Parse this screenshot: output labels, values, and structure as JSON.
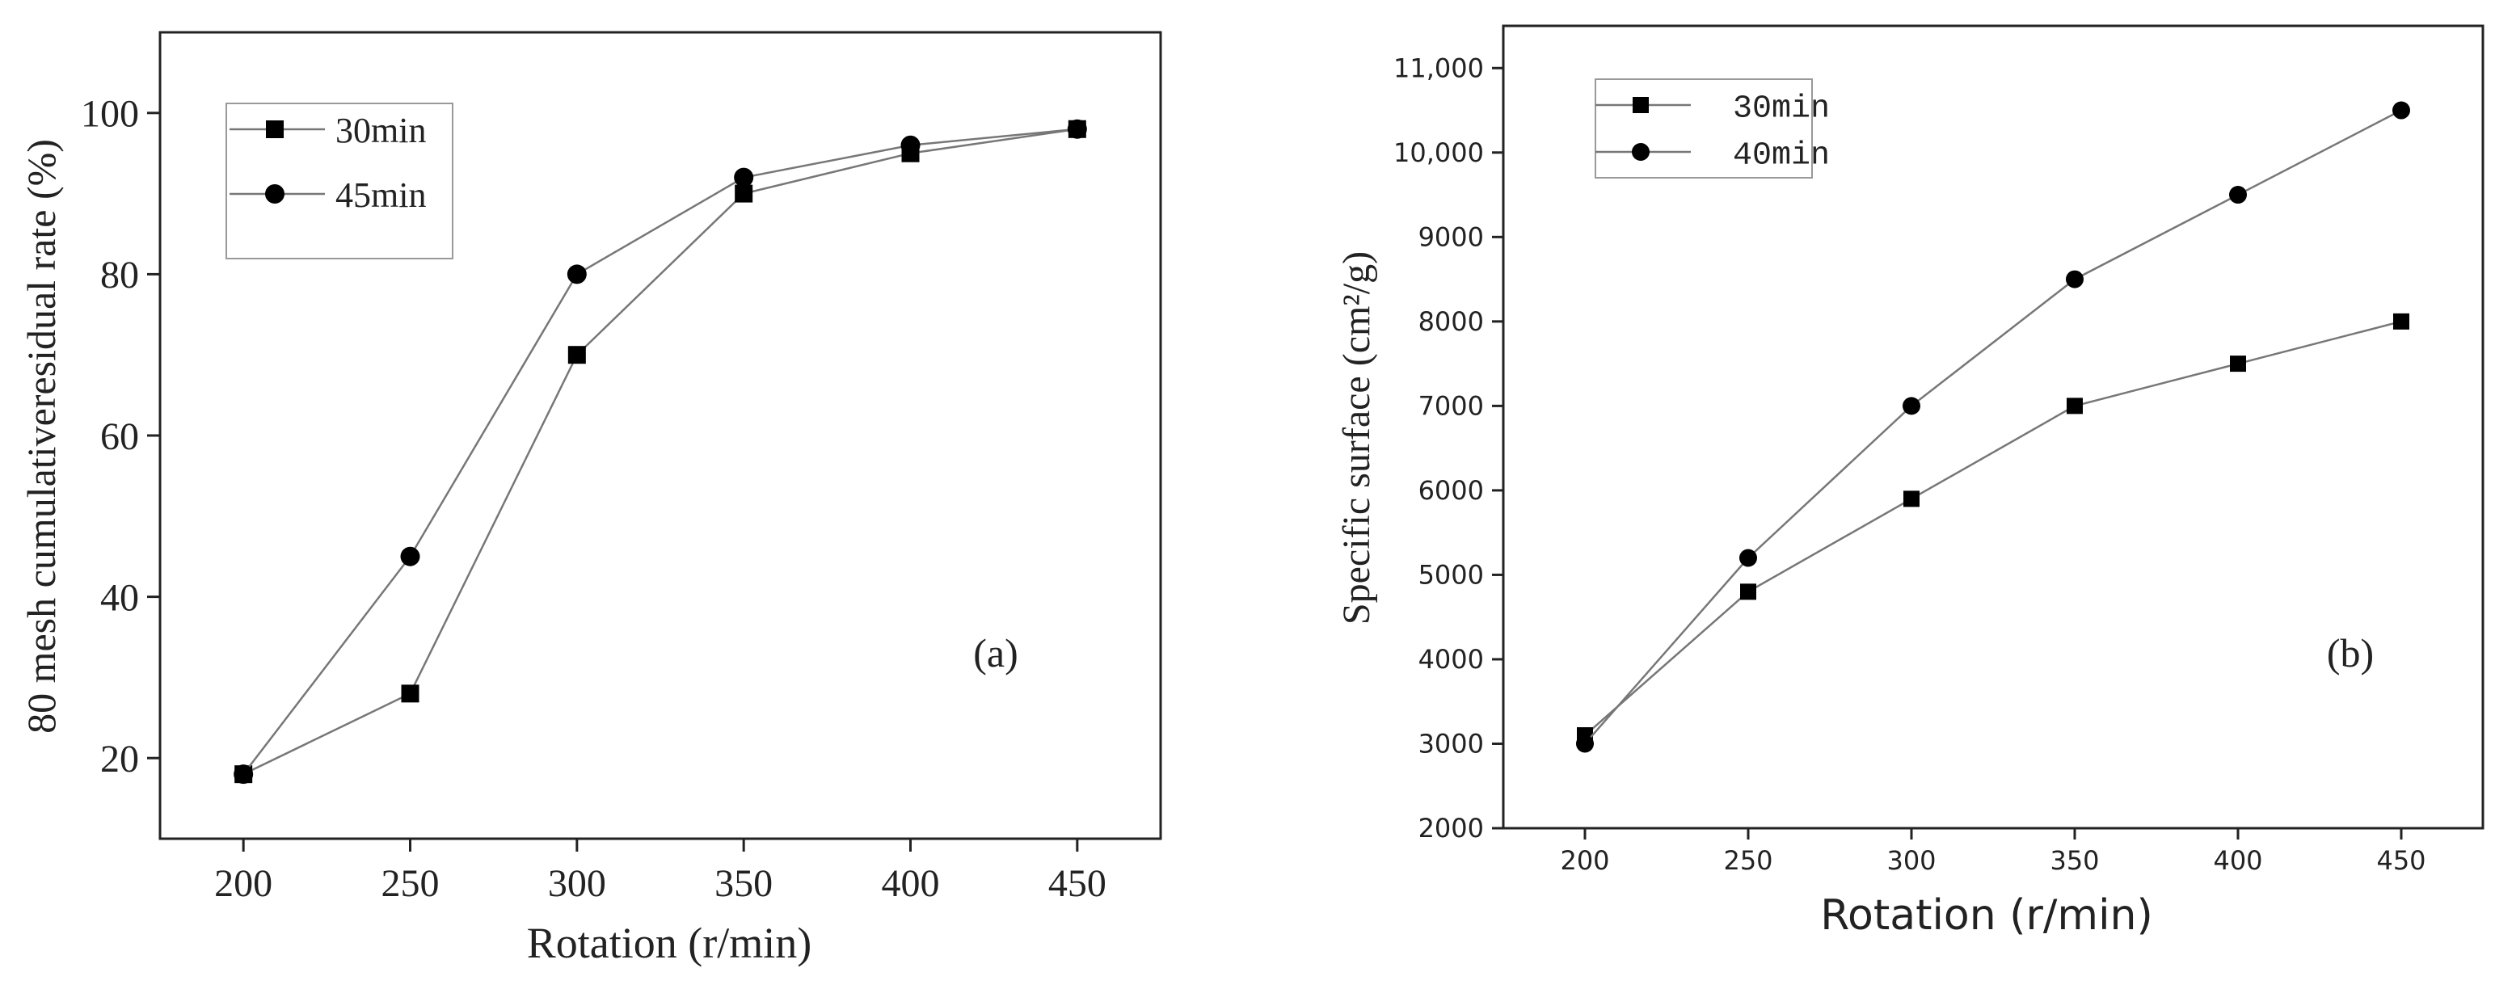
{
  "chart_data": [
    {
      "type": "line",
      "panel_label": "(a)",
      "title": "",
      "xlabel": "Rotation (r/min)",
      "ylabel": "80 mesh cumulativeresidual rate (%)",
      "x": [
        200,
        250,
        300,
        350,
        400,
        450
      ],
      "xlim": [
        175,
        475
      ],
      "ylim": [
        10,
        110
      ],
      "x_ticks": [
        "200",
        "250",
        "300",
        "350",
        "400",
        "450"
      ],
      "y_ticks": [
        "20",
        "40",
        "60",
        "80",
        "100"
      ],
      "grid": false,
      "legend_position": "top-left",
      "series": [
        {
          "name": "30min",
          "marker": "square",
          "values": [
            18,
            28,
            70,
            90,
            95,
            98
          ]
        },
        {
          "name": "45min",
          "marker": "circle",
          "values": [
            18,
            45,
            80,
            92,
            96,
            98
          ]
        }
      ]
    },
    {
      "type": "line",
      "panel_label": "(b)",
      "title": "",
      "xlabel": "Rotation (r/min)",
      "ylabel": "Specific surface (cm²/g)",
      "x": [
        200,
        250,
        300,
        350,
        400,
        450
      ],
      "xlim": [
        175,
        475
      ],
      "ylim": [
        2000,
        11500
      ],
      "x_ticks": [
        "200",
        "250",
        "300",
        "350",
        "400",
        "450"
      ],
      "y_ticks": [
        "2000",
        "3000",
        "4000",
        "5000",
        "6000",
        "7000",
        "8000",
        "9000",
        "10,000",
        "11,000"
      ],
      "grid": false,
      "legend_position": "top-left",
      "series": [
        {
          "name": "30min",
          "marker": "square",
          "values": [
            3100,
            4800,
            5900,
            7000,
            7500,
            8000
          ]
        },
        {
          "name": "40min",
          "marker": "circle",
          "values": [
            3000,
            5200,
            7000,
            8500,
            9500,
            10500
          ]
        }
      ]
    }
  ]
}
